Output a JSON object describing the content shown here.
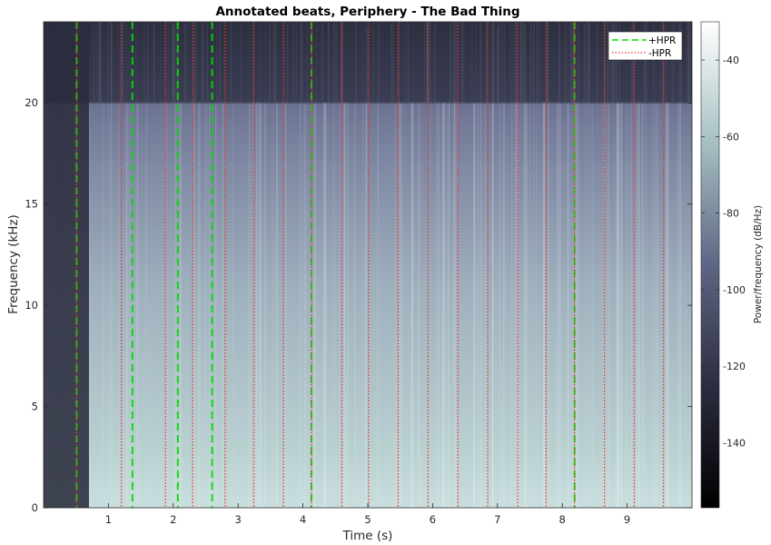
{
  "chart_data": {
    "type": "heatmap",
    "title": "Annotated beats, Periphery - The Bad Thing",
    "xlabel": "Time (s)",
    "ylabel": "Frequency (kHz)",
    "xlim": [
      0,
      10
    ],
    "ylim": [
      0,
      24
    ],
    "x_ticks": [
      1,
      2,
      3,
      4,
      5,
      6,
      7,
      8,
      9
    ],
    "y_ticks": [
      0,
      5,
      10,
      15,
      20
    ],
    "colorbar": {
      "label": "Power/frequency (dB/Hz)",
      "range": [
        -157,
        -30
      ],
      "ticks": [
        -40,
        -60,
        -80,
        -100,
        -120,
        -140
      ],
      "colors": [
        "#000000",
        "#3a3d58",
        "#7f88a2",
        "#b7cfcf",
        "#ffffff"
      ]
    },
    "heatmap_description_values": {
      "lowpass_cutoff_khz": 20,
      "quiet_intro_end_s": 0.7
    },
    "series": [
      {
        "name": "+HPR",
        "style": "dashed",
        "color": "#00dd00",
        "x": [
          0.51,
          1.37,
          2.07,
          2.6,
          4.13,
          8.19
        ]
      },
      {
        "name": "-HPR",
        "style": "dotted",
        "color": "#ee3333",
        "x": [
          0.51,
          1.2,
          1.88,
          2.3,
          2.8,
          3.24,
          3.7,
          4.13,
          4.6,
          5.01,
          5.47,
          5.93,
          6.39,
          6.85,
          7.31,
          7.75,
          8.19,
          8.65,
          9.11,
          9.56
        ]
      }
    ],
    "legend": {
      "placement": "top-right",
      "entries": [
        "+HPR",
        "-HPR"
      ]
    }
  }
}
